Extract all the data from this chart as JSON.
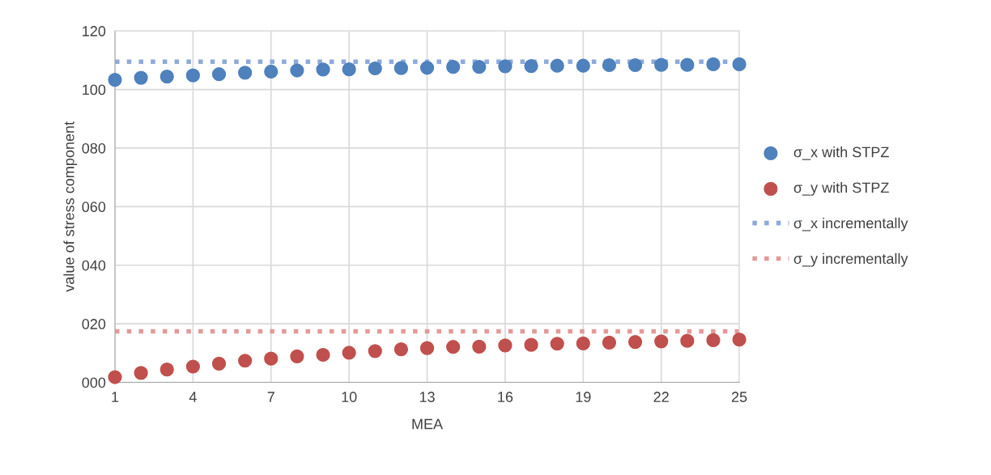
{
  "chart_data": {
    "type": "scatter",
    "xlabel": "MEA",
    "ylabel": "value of stress component",
    "x": [
      1,
      2,
      3,
      4,
      5,
      6,
      7,
      8,
      9,
      10,
      11,
      12,
      13,
      14,
      15,
      16,
      17,
      18,
      19,
      20,
      21,
      22,
      23,
      24,
      25
    ],
    "xlim": [
      1,
      25
    ],
    "xticks": [
      1,
      4,
      7,
      10,
      13,
      16,
      19,
      22,
      25
    ],
    "ylim": [
      0,
      120
    ],
    "yticks": [
      {
        "value": 0,
        "label": "000"
      },
      {
        "value": 20,
        "label": "020"
      },
      {
        "value": 40,
        "label": "040"
      },
      {
        "value": 60,
        "label": "060"
      },
      {
        "value": 80,
        "label": "080"
      },
      {
        "value": 100,
        "label": "100"
      },
      {
        "value": 120,
        "label": "120"
      }
    ],
    "grid": true,
    "legend": "right",
    "marker": "circle",
    "series": [
      {
        "name": "σ_x with STPZ",
        "color": "#4f81bd",
        "values": [
          103.3,
          104.0,
          104.4,
          104.8,
          105.2,
          105.7,
          106.1,
          106.5,
          106.8,
          106.9,
          107.2,
          107.3,
          107.4,
          107.7,
          107.7,
          107.9,
          108.0,
          108.1,
          108.1,
          108.3,
          108.3,
          108.4,
          108.4,
          108.6,
          108.6
        ]
      },
      {
        "name": "σ_y with STPZ",
        "color": "#c0504d",
        "values": [
          1.8,
          3.2,
          4.4,
          5.4,
          6.4,
          7.4,
          8.1,
          8.9,
          9.4,
          10.1,
          10.7,
          11.3,
          11.7,
          12.1,
          12.2,
          12.6,
          12.8,
          13.2,
          13.3,
          13.6,
          13.8,
          14.0,
          14.2,
          14.4,
          14.6
        ]
      },
      {
        "name": "σ_x incrementally",
        "type": "line",
        "line_style": "dotted",
        "marker": "none",
        "color": "#8eaadb",
        "values": [
          109.5,
          109.5,
          109.5,
          109.5,
          109.5,
          109.5,
          109.5,
          109.5,
          109.5,
          109.5,
          109.5,
          109.5,
          109.5,
          109.5,
          109.5,
          109.5,
          109.5,
          109.5,
          109.5,
          109.5,
          109.5,
          109.5,
          109.5,
          109.5,
          109.5
        ]
      },
      {
        "name": "σ_y incrementally",
        "type": "line",
        "line_style": "dotted",
        "marker": "none",
        "color": "#e39a98",
        "values": [
          17.4,
          17.4,
          17.4,
          17.4,
          17.4,
          17.4,
          17.4,
          17.4,
          17.4,
          17.4,
          17.4,
          17.4,
          17.4,
          17.4,
          17.4,
          17.4,
          17.4,
          17.4,
          17.4,
          17.4,
          17.4,
          17.4,
          17.4,
          17.4,
          17.4
        ]
      }
    ]
  }
}
